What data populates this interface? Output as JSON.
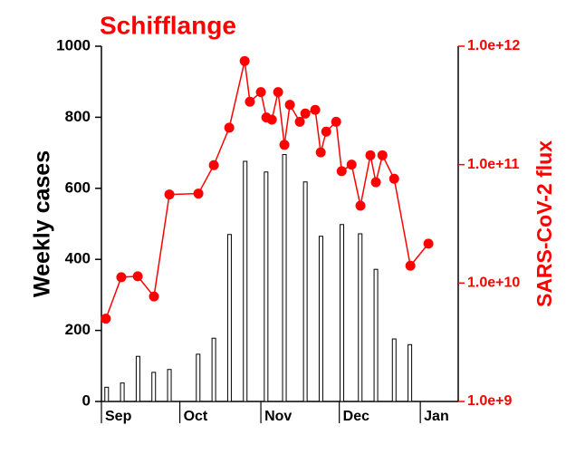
{
  "chart_data": {
    "type": "bar-line",
    "title": "Schifflange",
    "ylabel": "Weekly cases",
    "y2label": "SARS-CoV-2 flux",
    "xlim": [
      0,
      136.5
    ],
    "xticks": [
      {
        "value": 0,
        "label": "Sep"
      },
      {
        "value": 30,
        "label": "Oct"
      },
      {
        "value": 61,
        "label": "Nov"
      },
      {
        "value": 91,
        "label": "Dec"
      },
      {
        "value": 122,
        "label": "Jan"
      }
    ],
    "ylim": [
      0,
      1000
    ],
    "yticks": [
      0,
      200,
      400,
      600,
      800,
      1000
    ],
    "y2lim": [
      1000000000,
      1000000000000
    ],
    "y2log": true,
    "y2ticks": [
      {
        "value": 1000000000,
        "label": "1.0e+9"
      },
      {
        "value": 10000000000,
        "label": "1.0e+10"
      },
      {
        "value": 100000000000,
        "label": "1.0e+11"
      },
      {
        "value": 1000000000000,
        "label": "1.0e+12"
      }
    ],
    "series": [
      {
        "kind": "bar",
        "color": "#ffffff",
        "x": [
          2,
          8,
          14,
          20,
          26,
          37,
          43,
          49,
          55,
          63,
          70,
          78,
          84,
          92,
          99,
          105,
          112,
          118
        ],
        "values": [
          40,
          52,
          127,
          82,
          90,
          133,
          178,
          470,
          676,
          646,
          695,
          618,
          465,
          498,
          472,
          372,
          176,
          160
        ]
      },
      {
        "kind": "line",
        "axis": "y2",
        "color": "#ff0000",
        "x": [
          1.7,
          7.6,
          13.9,
          20.1,
          26,
          37.1,
          43,
          48.9,
          54.8,
          56.8,
          61,
          63.1,
          65.2,
          67.6,
          70,
          72.1,
          75.9,
          78,
          81.8,
          83.9,
          86,
          89.8,
          91.9,
          95.7,
          99.1,
          102.9,
          105,
          107.5,
          112,
          118.2,
          125.1
        ],
        "values": [
          5000000000,
          11200000000,
          11400000000,
          7700000000,
          56000000000,
          57000000000,
          99000000000,
          205000000000,
          750000000000,
          340000000000,
          410000000000,
          250000000000,
          240000000000,
          410000000000,
          147000000000,
          320000000000,
          230000000000,
          270000000000,
          290000000000,
          127000000000,
          190000000000,
          230000000000,
          88000000000,
          100000000000,
          45000000000,
          120000000000,
          71000000000,
          120000000000,
          76000000000,
          14000000000,
          21500000000
        ]
      }
    ]
  }
}
